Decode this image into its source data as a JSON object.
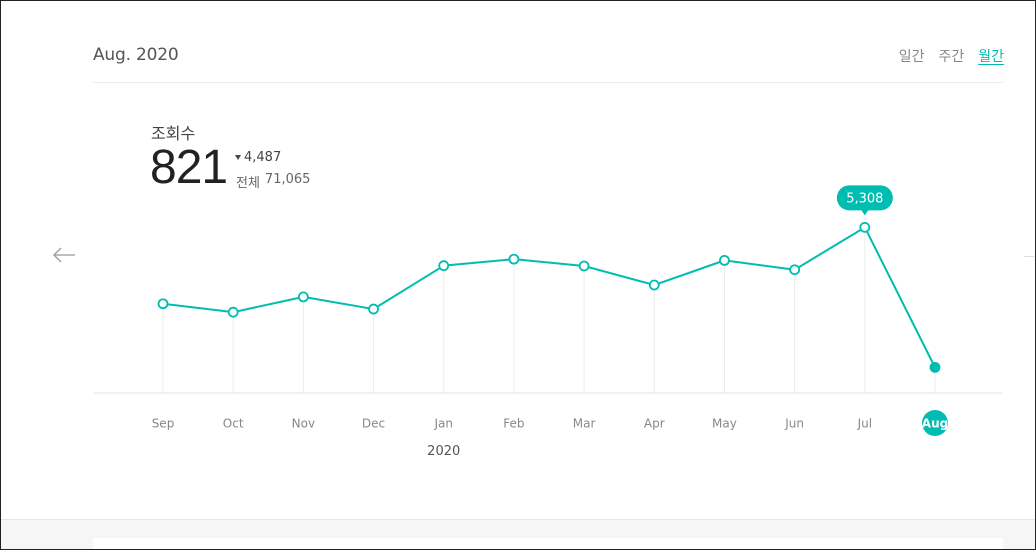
{
  "header": {
    "date": "Aug. 2020"
  },
  "period_tabs": [
    {
      "label": "일간",
      "active": false
    },
    {
      "label": "주간",
      "active": false
    },
    {
      "label": "월간",
      "active": true
    }
  ],
  "metric": {
    "title": "조회수",
    "value": "821",
    "change": "4,487",
    "total_label": "전체",
    "total_value": "71,065"
  },
  "icons": {
    "prev": "arrow-left-icon",
    "change": "triangle-down-icon"
  },
  "colors": {
    "accent": "#00bdb1",
    "grid": "#ececec",
    "axis_text": "#888888"
  },
  "chart_data": {
    "type": "line",
    "categories": [
      "Sep",
      "Oct",
      "Nov",
      "Dec",
      "Jan",
      "Feb",
      "Mar",
      "Apr",
      "May",
      "Jun",
      "Jul",
      "Aug"
    ],
    "year_label": "2020",
    "values": [
      2860,
      2590,
      3080,
      2690,
      4080,
      4290,
      4070,
      3460,
      4250,
      3950,
      5308,
      821
    ],
    "highlighted": {
      "category": "Jul",
      "label": "5,308"
    },
    "selected": "Aug",
    "ylim": [
      0,
      5800
    ],
    "grid": "vertical"
  }
}
